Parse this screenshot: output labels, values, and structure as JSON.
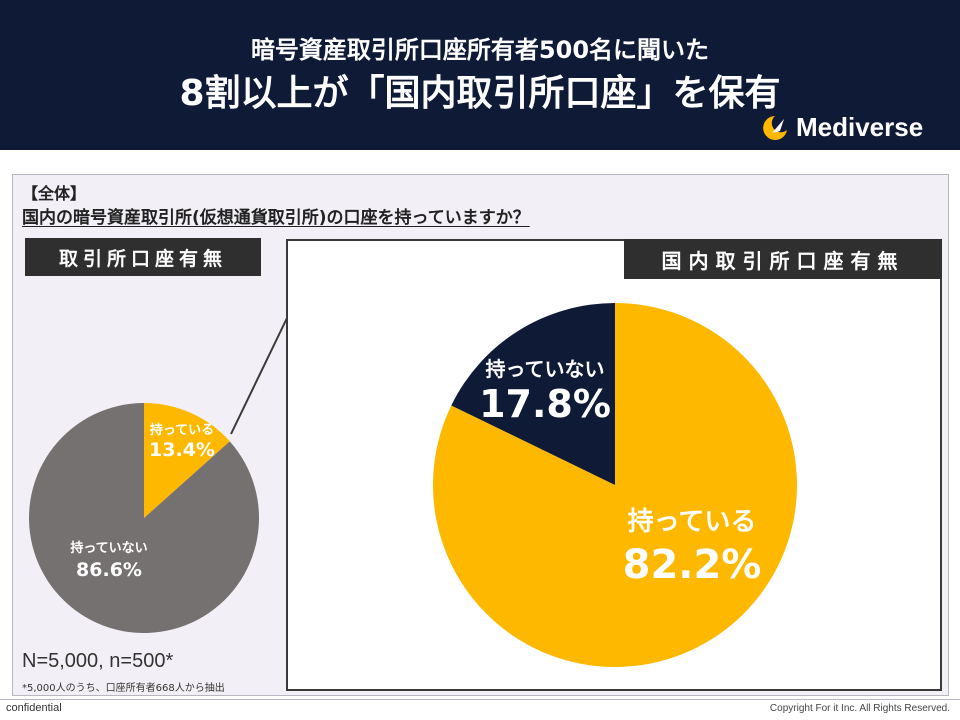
{
  "header": {
    "subtitle": "暗号資産取引所口座所有者500名に聞いた",
    "title": "8割以上が「国内取引所口座」を保有",
    "brand": "Mediverse"
  },
  "question": {
    "tag": "【全体】",
    "text": "国内の暗号資産取引所(仮想通貨取引所)の口座を持っていますか？"
  },
  "left_badge": "取引所口座有無",
  "right_badge": "国内取引所口座有無",
  "colors": {
    "own": "#ffb800",
    "not_left": "#767171",
    "not_right": "#0f1a36",
    "header": "#0f1a36"
  },
  "chart_data": [
    {
      "type": "pie",
      "title": "取引所口座有無",
      "slices": [
        {
          "label": "持っている",
          "value": 13.4,
          "display": "13.4%"
        },
        {
          "label": "持っていない",
          "value": 86.6,
          "display": "86.6%"
        }
      ]
    },
    {
      "type": "pie",
      "title": "国内取引所口座有無",
      "slices": [
        {
          "label": "持っている",
          "value": 82.2,
          "display": "82.2%"
        },
        {
          "label": "持っていない",
          "value": 17.8,
          "display": "17.8%"
        }
      ]
    }
  ],
  "sample": "N=5,000, n=500*",
  "note": "*5,000人のうち、口座所有者668人から抽出",
  "footer": {
    "confidential": "confidential",
    "copyright": "Copyright For it Inc. All Rights Reserved."
  }
}
